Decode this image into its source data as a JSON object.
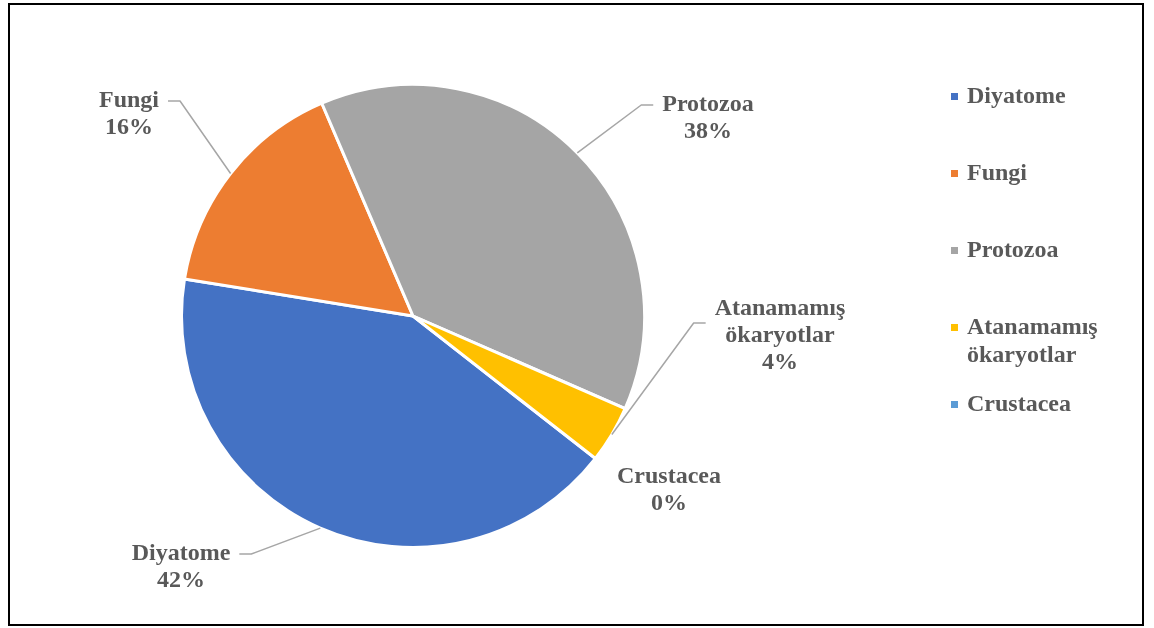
{
  "chart_data": {
    "type": "pie",
    "categories": [
      "Diyatome",
      "Fungi",
      "Protozoa",
      "Atanamamış ökaryotlar",
      "Crustacea"
    ],
    "values": [
      42,
      16,
      38,
      4,
      0
    ],
    "colors": [
      "#4472c4",
      "#ed7d31",
      "#a5a5a5",
      "#ffc000",
      "#5b9bd5"
    ],
    "value_labels": [
      "42%",
      "16%",
      "38%",
      "4%",
      "0%"
    ],
    "legend": "right"
  }
}
